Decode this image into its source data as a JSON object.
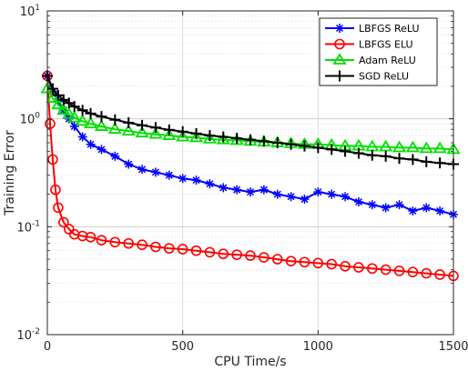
{
  "chart_data": {
    "type": "line",
    "title": "",
    "xlabel": "CPU Time/s",
    "ylabel": "Training Error",
    "yscale": "log",
    "xlim": [
      0,
      1500
    ],
    "ylim": [
      0.01,
      10
    ],
    "xticks": [
      "0",
      "500",
      "1000",
      "1500"
    ],
    "xtick_values": [
      0,
      500,
      1000,
      1500
    ],
    "ytick_values": [
      0.01,
      0.1,
      1,
      10
    ],
    "ytick_labels": [
      {
        "base": "10",
        "exp": "-2"
      },
      {
        "base": "10",
        "exp": "-1"
      },
      {
        "base": "10",
        "exp": "0"
      },
      {
        "base": "10",
        "exp": "1"
      }
    ],
    "grid": true,
    "legend_position": "top-right",
    "series": [
      {
        "name": "LBFGS ReLU",
        "color": "#0000ff",
        "marker": "asterisk",
        "x": [
          0,
          20,
          40,
          60,
          80,
          100,
          130,
          160,
          200,
          250,
          300,
          350,
          400,
          450,
          500,
          550,
          600,
          650,
          700,
          750,
          800,
          850,
          900,
          950,
          1000,
          1050,
          1100,
          1150,
          1200,
          1250,
          1300,
          1350,
          1400,
          1450,
          1500
        ],
        "y": [
          2.5,
          1.8,
          1.45,
          1.2,
          1.0,
          0.85,
          0.68,
          0.58,
          0.52,
          0.45,
          0.38,
          0.34,
          0.32,
          0.3,
          0.28,
          0.27,
          0.25,
          0.23,
          0.22,
          0.21,
          0.22,
          0.2,
          0.19,
          0.18,
          0.21,
          0.2,
          0.19,
          0.17,
          0.16,
          0.15,
          0.16,
          0.14,
          0.15,
          0.14,
          0.13
        ]
      },
      {
        "name": "LBFGS ELU",
        "color": "#ff0000",
        "marker": "circle",
        "x": [
          0,
          10,
          20,
          30,
          40,
          60,
          80,
          100,
          130,
          160,
          200,
          250,
          300,
          350,
          400,
          450,
          500,
          550,
          600,
          650,
          700,
          750,
          800,
          850,
          900,
          950,
          1000,
          1050,
          1100,
          1150,
          1200,
          1250,
          1300,
          1350,
          1400,
          1450,
          1500
        ],
        "y": [
          2.5,
          0.9,
          0.42,
          0.22,
          0.15,
          0.11,
          0.095,
          0.085,
          0.082,
          0.08,
          0.075,
          0.072,
          0.07,
          0.068,
          0.065,
          0.063,
          0.062,
          0.06,
          0.058,
          0.056,
          0.055,
          0.054,
          0.052,
          0.05,
          0.048,
          0.047,
          0.046,
          0.045,
          0.043,
          0.042,
          0.041,
          0.04,
          0.039,
          0.038,
          0.037,
          0.036,
          0.035
        ]
      },
      {
        "name": "Adam ReLU",
        "color": "#00e000",
        "marker": "triangle",
        "x": [
          0,
          20,
          40,
          60,
          80,
          100,
          130,
          160,
          200,
          250,
          300,
          350,
          400,
          450,
          500,
          550,
          600,
          650,
          700,
          750,
          800,
          850,
          900,
          950,
          1000,
          1050,
          1100,
          1150,
          1200,
          1250,
          1300,
          1350,
          1400,
          1450,
          1500
        ],
        "y": [
          1.9,
          1.55,
          1.35,
          1.2,
          1.1,
          1.02,
          0.95,
          0.9,
          0.85,
          0.8,
          0.77,
          0.74,
          0.72,
          0.7,
          0.68,
          0.67,
          0.65,
          0.64,
          0.63,
          0.62,
          0.61,
          0.6,
          0.59,
          0.58,
          0.58,
          0.57,
          0.56,
          0.56,
          0.55,
          0.55,
          0.54,
          0.54,
          0.53,
          0.53,
          0.52
        ]
      },
      {
        "name": "SGD ReLU",
        "color": "#000000",
        "marker": "plus",
        "x": [
          0,
          20,
          40,
          60,
          80,
          100,
          130,
          160,
          200,
          250,
          300,
          350,
          400,
          450,
          500,
          550,
          600,
          650,
          700,
          750,
          800,
          850,
          900,
          950,
          1000,
          1050,
          1100,
          1150,
          1200,
          1250,
          1300,
          1350,
          1400,
          1450,
          1500
        ],
        "y": [
          2.5,
          1.9,
          1.65,
          1.5,
          1.4,
          1.3,
          1.2,
          1.12,
          1.05,
          0.98,
          0.92,
          0.87,
          0.83,
          0.79,
          0.76,
          0.73,
          0.7,
          0.68,
          0.66,
          0.64,
          0.62,
          0.6,
          0.58,
          0.56,
          0.54,
          0.52,
          0.5,
          0.48,
          0.46,
          0.45,
          0.43,
          0.42,
          0.4,
          0.39,
          0.38
        ]
      }
    ]
  }
}
